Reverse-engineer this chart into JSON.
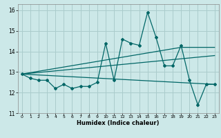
{
  "title": "",
  "xlabel": "Humidex (Indice chaleur)",
  "ylabel": "",
  "xlim": [
    -0.5,
    23.5
  ],
  "ylim": [
    11,
    16.3
  ],
  "yticks": [
    11,
    12,
    13,
    14,
    15,
    16
  ],
  "xticks": [
    0,
    1,
    2,
    3,
    4,
    5,
    6,
    7,
    8,
    9,
    10,
    11,
    12,
    13,
    14,
    15,
    16,
    17,
    18,
    19,
    20,
    21,
    22,
    23
  ],
  "bg_color": "#cce8e8",
  "grid_color": "#aacccc",
  "line_color": "#006666",
  "series1_x": [
    0,
    1,
    2,
    3,
    4,
    5,
    6,
    7,
    8,
    9,
    10,
    11,
    12,
    13,
    14,
    15,
    16,
    17,
    18,
    19,
    20,
    21,
    22,
    23
  ],
  "series1_y": [
    12.9,
    12.7,
    12.6,
    12.6,
    12.2,
    12.4,
    12.2,
    12.3,
    12.3,
    12.5,
    14.4,
    12.6,
    14.6,
    14.4,
    14.3,
    15.9,
    14.7,
    13.3,
    13.3,
    14.3,
    12.6,
    11.4,
    12.4,
    12.4
  ],
  "series2_x": [
    0,
    23
  ],
  "series2_y": [
    12.9,
    12.4
  ],
  "series3_x": [
    0,
    23
  ],
  "series3_y": [
    12.9,
    13.8
  ],
  "series4_x": [
    0,
    19,
    23
  ],
  "series4_y": [
    12.9,
    14.2,
    14.2
  ]
}
